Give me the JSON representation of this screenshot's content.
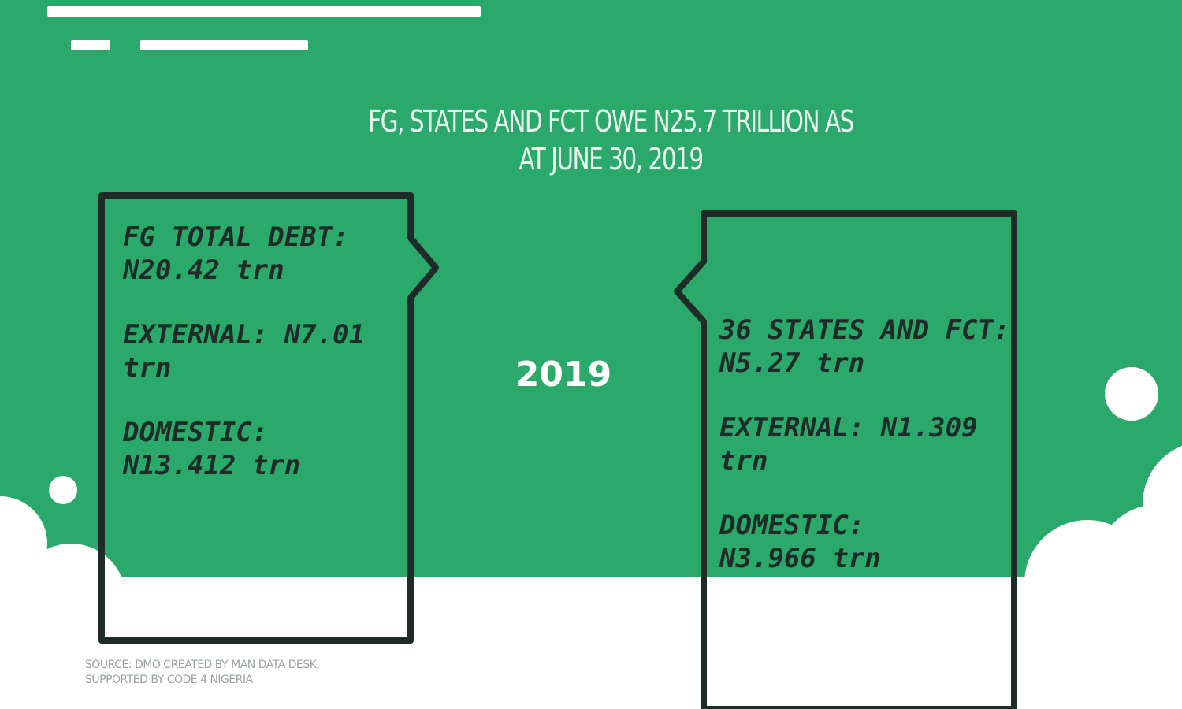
{
  "headline": {
    "line1": "FG, STATES AND FCT OWE N25.7 TRILLION AS",
    "line2": "AT JUNE 30, 2019"
  },
  "year": "2019",
  "fg_box": {
    "total_label": "FG TOTAL DEBT:",
    "total_value": "N20.42",
    "external_label": "EXTERNAL:",
    "external_value": "N7.01",
    "domestic_label": "DOMESTIC:",
    "domestic_value": "N13.412",
    "unit": "trn"
  },
  "states_box": {
    "total_label": "36 STATES AND FCT:",
    "total_value": "N5.27",
    "external_label": "EXTERNAL:",
    "external_value": "N1.309",
    "domestic_label": "DOMESTIC:",
    "domestic_value": "N3.966",
    "unit": "trn"
  },
  "source": {
    "line1": "SOURCE: DMO    CREATED BY MAN DATA DESK,",
    "line2": "SUPPORTED BY CODE 4 NIGERIA"
  },
  "colors": {
    "background_green": "#2aa96b",
    "box_outline": "#1f2b28",
    "text_light": "#ffffff"
  }
}
